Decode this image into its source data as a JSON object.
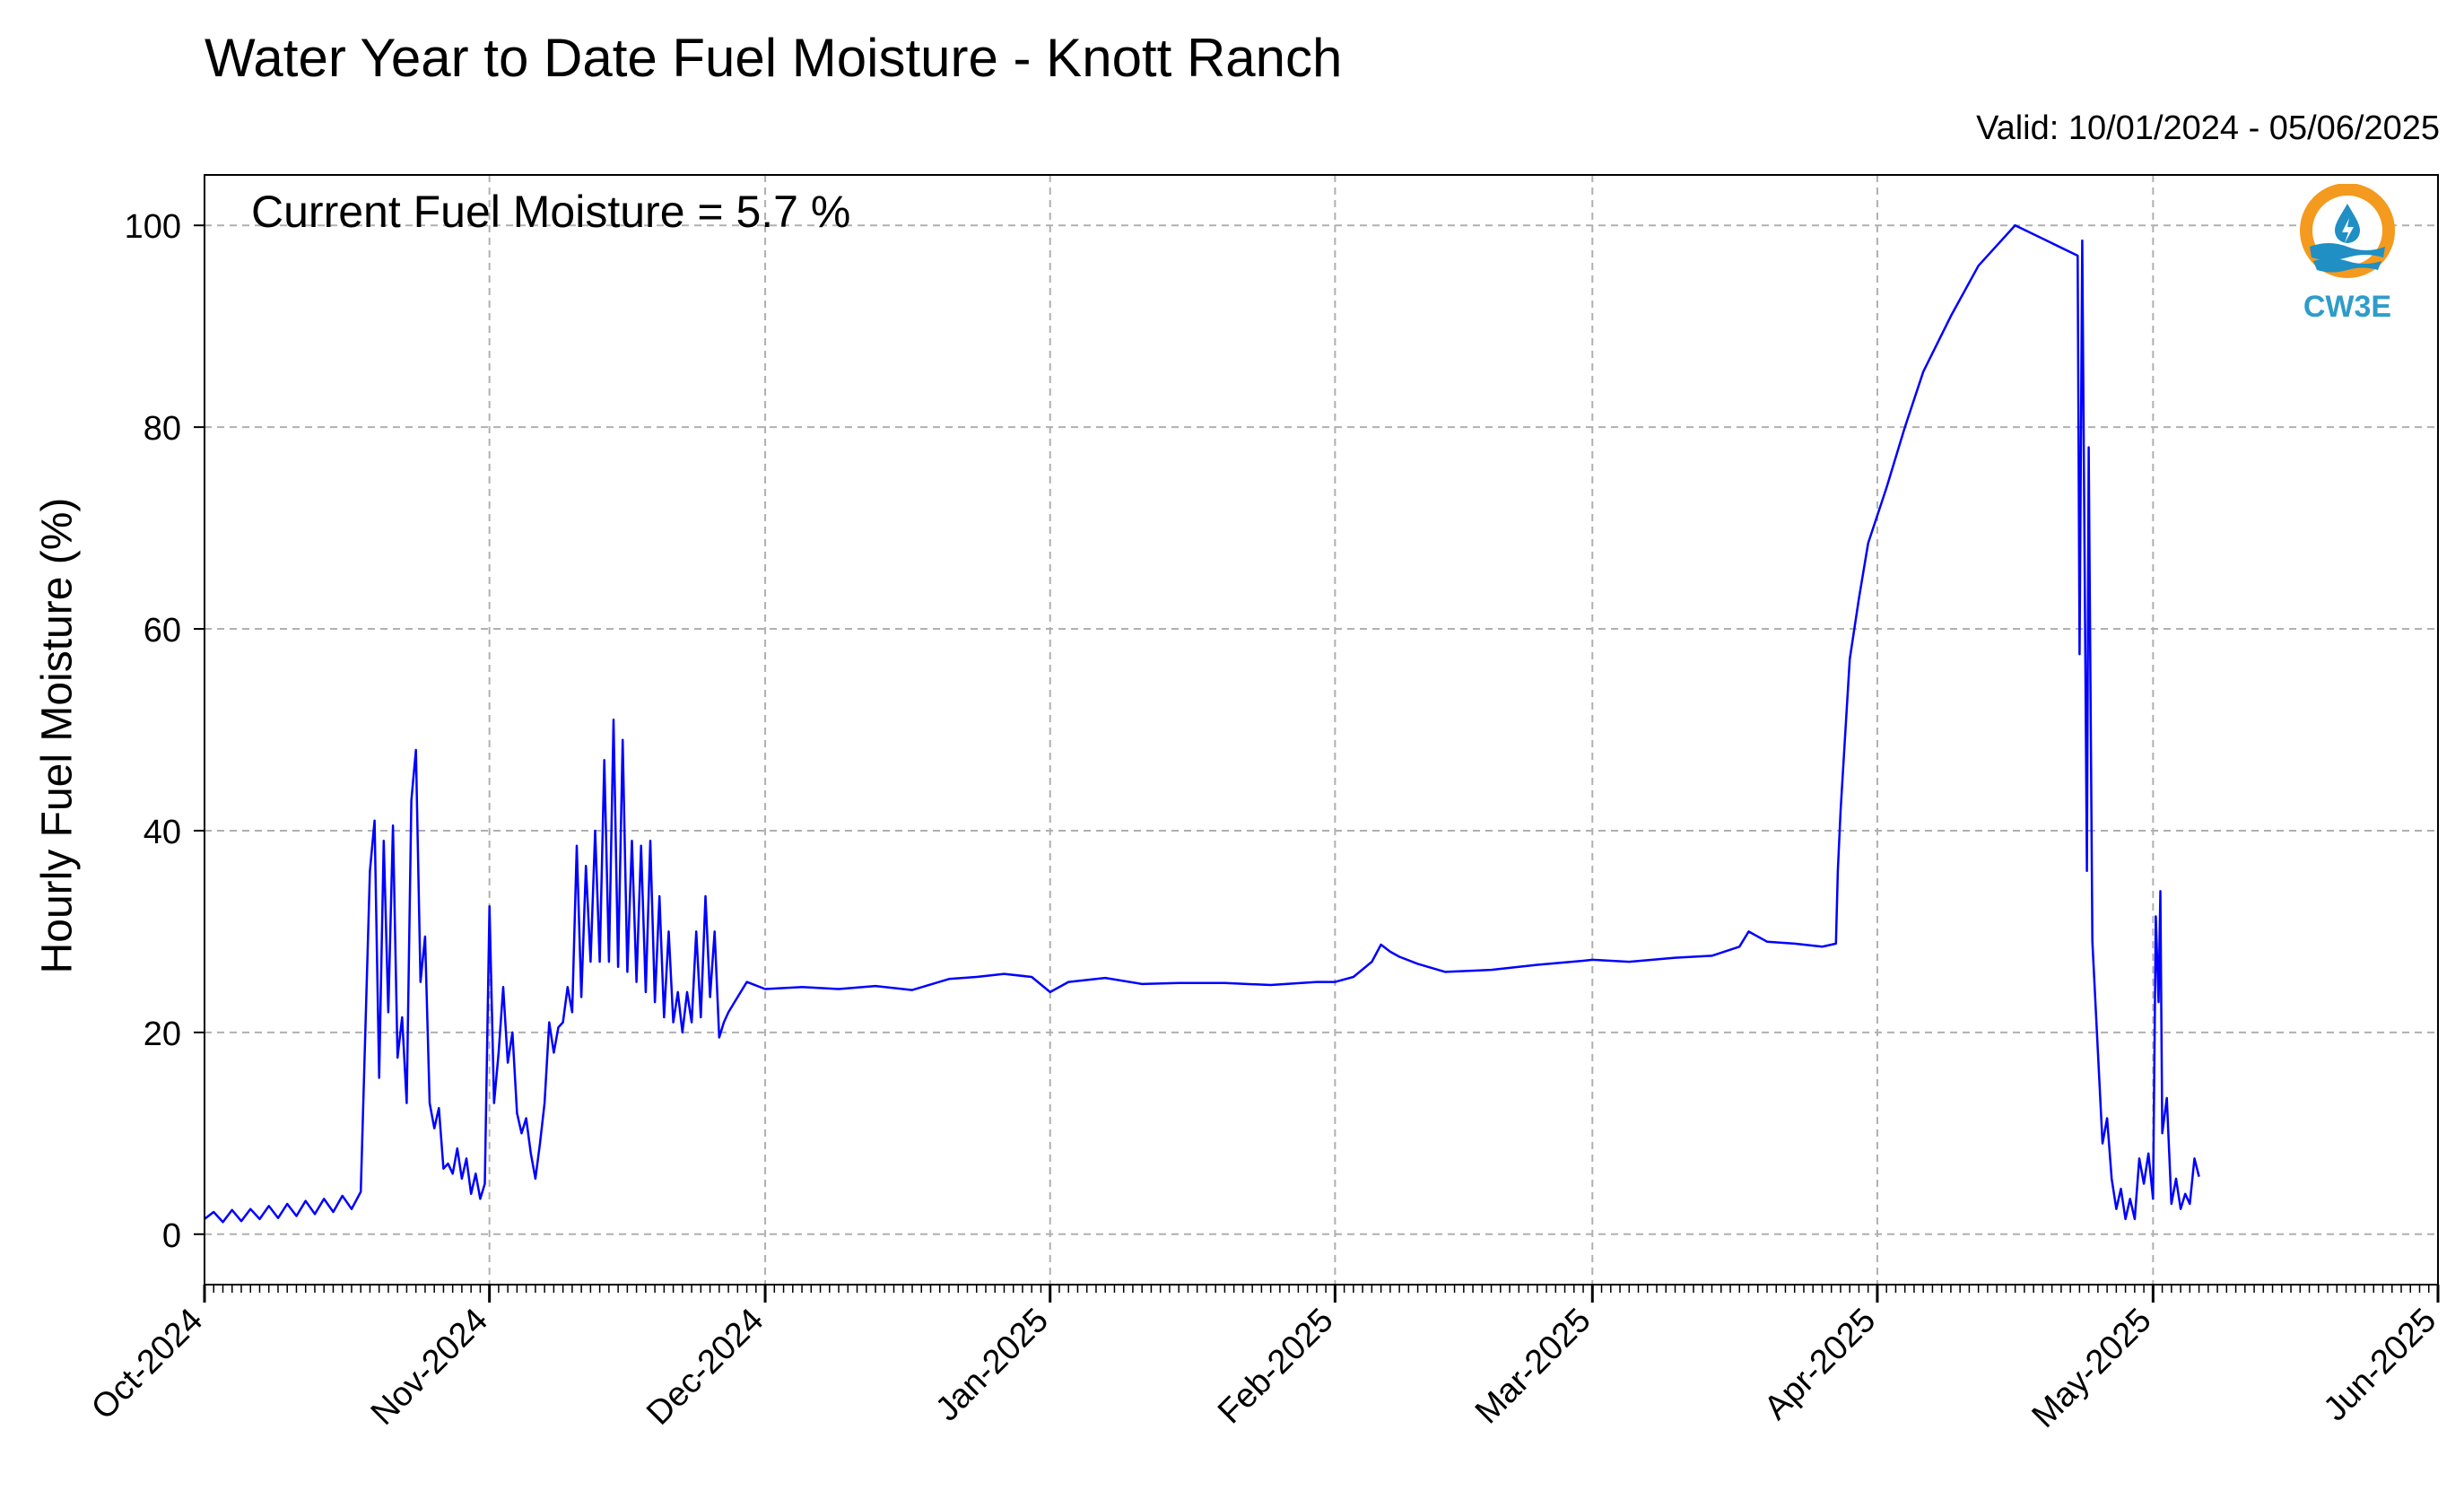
{
  "header": {
    "title": "Water Year to Date Fuel Moisture - Knott Ranch",
    "valid": "Valid: 10/01/2024 - 05/06/2025",
    "annotation": "Current Fuel Moisture = 5.7 %"
  },
  "logo": {
    "text": "CW3E",
    "ring_color": "#f39a1f",
    "wave_color": "#1f8fc4"
  },
  "chart_data": {
    "type": "line",
    "ylabel": "Hourly Fuel Moisture (%)",
    "xlim": [
      "2024-10-01",
      "2025-06-01"
    ],
    "ylim": [
      -5,
      105
    ],
    "grid": true,
    "line_color": "#0000ff",
    "xticks": [
      {
        "date": "2024-10-01",
        "label": "Oct-2024"
      },
      {
        "date": "2024-11-01",
        "label": "Nov-2024"
      },
      {
        "date": "2024-12-01",
        "label": "Dec-2024"
      },
      {
        "date": "2025-01-01",
        "label": "Jan-2025"
      },
      {
        "date": "2025-02-01",
        "label": "Feb-2025"
      },
      {
        "date": "2025-03-01",
        "label": "Mar-2025"
      },
      {
        "date": "2025-04-01",
        "label": "Apr-2025"
      },
      {
        "date": "2025-05-01",
        "label": "May-2025"
      },
      {
        "date": "2025-06-01",
        "label": "Jun-2025"
      }
    ],
    "yticks": [
      0,
      20,
      40,
      60,
      80,
      100
    ],
    "series": [
      {
        "points": [
          [
            "2024-10-01",
            1.5
          ],
          [
            "2024-10-02",
            2.2
          ],
          [
            "2024-10-03",
            1.2
          ],
          [
            "2024-10-04",
            2.4
          ],
          [
            "2024-10-05",
            1.3
          ],
          [
            "2024-10-06",
            2.5
          ],
          [
            "2024-10-07",
            1.5
          ],
          [
            "2024-10-08",
            2.8
          ],
          [
            "2024-10-09",
            1.6
          ],
          [
            "2024-10-10",
            3.0
          ],
          [
            "2024-10-11",
            1.8
          ],
          [
            "2024-10-12",
            3.3
          ],
          [
            "2024-10-13",
            2.0
          ],
          [
            "2024-10-14",
            3.5
          ],
          [
            "2024-10-15",
            2.2
          ],
          [
            "2024-10-16",
            3.8
          ],
          [
            "2024-10-17",
            2.5
          ],
          [
            "2024-10-18",
            4.2
          ],
          [
            "2024-10-19",
            36.0
          ],
          [
            "2024-10-19.5",
            41.0
          ],
          [
            "2024-10-20",
            15.5
          ],
          [
            "2024-10-20.5",
            39.0
          ],
          [
            "2024-10-21",
            22.0
          ],
          [
            "2024-10-21.5",
            40.5
          ],
          [
            "2024-10-22",
            17.5
          ],
          [
            "2024-10-22.5",
            21.5
          ],
          [
            "2024-10-23",
            13.0
          ],
          [
            "2024-10-23.5",
            43.0
          ],
          [
            "2024-10-24",
            48.0
          ],
          [
            "2024-10-24.5",
            25.0
          ],
          [
            "2024-10-25",
            29.5
          ],
          [
            "2024-10-25.5",
            13.0
          ],
          [
            "2024-10-26",
            10.5
          ],
          [
            "2024-10-26.5",
            12.5
          ],
          [
            "2024-10-27",
            6.5
          ],
          [
            "2024-10-27.5",
            7.0
          ],
          [
            "2024-10-28",
            6.0
          ],
          [
            "2024-10-28.5",
            8.5
          ],
          [
            "2024-10-29",
            5.5
          ],
          [
            "2024-10-29.5",
            7.5
          ],
          [
            "2024-10-30",
            4.0
          ],
          [
            "2024-10-30.5",
            6.0
          ],
          [
            "2024-10-31",
            3.5
          ],
          [
            "2024-10-31.5",
            5.0
          ],
          [
            "2024-11-01",
            32.5
          ],
          [
            "2024-11-01.5",
            13.0
          ],
          [
            "2024-11-02",
            18.0
          ],
          [
            "2024-11-02.5",
            24.5
          ],
          [
            "2024-11-03",
            17.0
          ],
          [
            "2024-11-03.5",
            20.0
          ],
          [
            "2024-11-04",
            12.0
          ],
          [
            "2024-11-04.5",
            10.0
          ],
          [
            "2024-11-05",
            11.5
          ],
          [
            "2024-11-05.5",
            8.0
          ],
          [
            "2024-11-06",
            5.5
          ],
          [
            "2024-11-06.5",
            9.0
          ],
          [
            "2024-11-07",
            13.0
          ],
          [
            "2024-11-07.5",
            21.0
          ],
          [
            "2024-11-08",
            18.0
          ],
          [
            "2024-11-08.5",
            20.5
          ],
          [
            "2024-11-09",
            21.0
          ],
          [
            "2024-11-09.5",
            24.5
          ],
          [
            "2024-11-10",
            22.0
          ],
          [
            "2024-11-10.5",
            38.5
          ],
          [
            "2024-11-11",
            23.5
          ],
          [
            "2024-11-11.5",
            36.5
          ],
          [
            "2024-11-12",
            27.0
          ],
          [
            "2024-11-12.5",
            40.0
          ],
          [
            "2024-11-13",
            27.0
          ],
          [
            "2024-11-13.5",
            47.0
          ],
          [
            "2024-11-14",
            27.0
          ],
          [
            "2024-11-14.5",
            51.0
          ],
          [
            "2024-11-15",
            26.5
          ],
          [
            "2024-11-15.5",
            49.0
          ],
          [
            "2024-11-16",
            26.0
          ],
          [
            "2024-11-16.5",
            39.0
          ],
          [
            "2024-11-17",
            25.0
          ],
          [
            "2024-11-17.5",
            38.5
          ],
          [
            "2024-11-18",
            24.0
          ],
          [
            "2024-11-18.5",
            39.0
          ],
          [
            "2024-11-19",
            23.0
          ],
          [
            "2024-11-19.5",
            33.5
          ],
          [
            "2024-11-20",
            21.5
          ],
          [
            "2024-11-20.5",
            30.0
          ],
          [
            "2024-11-21",
            21.0
          ],
          [
            "2024-11-21.5",
            24.0
          ],
          [
            "2024-11-22",
            20.0
          ],
          [
            "2024-11-22.5",
            24.0
          ],
          [
            "2024-11-23",
            21.0
          ],
          [
            "2024-11-23.5",
            30.0
          ],
          [
            "2024-11-24",
            21.5
          ],
          [
            "2024-11-24.5",
            33.5
          ],
          [
            "2024-11-25",
            23.5
          ],
          [
            "2024-11-25.5",
            30.0
          ],
          [
            "2024-11-26",
            19.5
          ],
          [
            "2024-11-26.5",
            21.0
          ],
          [
            "2024-11-27",
            22.0
          ],
          [
            "2024-11-28",
            23.5
          ],
          [
            "2024-11-29",
            25.0
          ],
          [
            "2024-12-01",
            24.3
          ],
          [
            "2024-12-05",
            24.5
          ],
          [
            "2024-12-09",
            24.3
          ],
          [
            "2024-12-13",
            24.6
          ],
          [
            "2024-12-17",
            24.2
          ],
          [
            "2024-12-21",
            25.3
          ],
          [
            "2024-12-24",
            25.5
          ],
          [
            "2024-12-27",
            25.8
          ],
          [
            "2024-12-30",
            25.5
          ],
          [
            "2025-01-01",
            24.0
          ],
          [
            "2025-01-03",
            25.0
          ],
          [
            "2025-01-07",
            25.4
          ],
          [
            "2025-01-11",
            24.8
          ],
          [
            "2025-01-15",
            24.9
          ],
          [
            "2025-01-20",
            24.9
          ],
          [
            "2025-01-25",
            24.7
          ],
          [
            "2025-01-30",
            25.0
          ],
          [
            "2025-02-01",
            25.0
          ],
          [
            "2025-02-03",
            25.5
          ],
          [
            "2025-02-05",
            27.0
          ],
          [
            "2025-02-06",
            28.7
          ],
          [
            "2025-02-07",
            28.0
          ],
          [
            "2025-02-08",
            27.5
          ],
          [
            "2025-02-10",
            26.8
          ],
          [
            "2025-02-13",
            26.0
          ],
          [
            "2025-02-18",
            26.2
          ],
          [
            "2025-02-23",
            26.7
          ],
          [
            "2025-02-28",
            27.1
          ],
          [
            "2025-03-01",
            27.2
          ],
          [
            "2025-03-05",
            27.0
          ],
          [
            "2025-03-10",
            27.4
          ],
          [
            "2025-03-14",
            27.6
          ],
          [
            "2025-03-17",
            28.5
          ],
          [
            "2025-03-18",
            30.0
          ],
          [
            "2025-03-20",
            29.0
          ],
          [
            "2025-03-23",
            28.8
          ],
          [
            "2025-03-26",
            28.5
          ],
          [
            "2025-03-27.5",
            28.8
          ],
          [
            "2025-03-27.7",
            36.0
          ],
          [
            "2025-03-28",
            42.0
          ],
          [
            "2025-03-29",
            57.0
          ],
          [
            "2025-03-30",
            63.0
          ],
          [
            "2025-03-31",
            68.5
          ],
          [
            "2025-04-02",
            74.0
          ],
          [
            "2025-04-04",
            80.0
          ],
          [
            "2025-04-06",
            85.5
          ],
          [
            "2025-04-09",
            91.0
          ],
          [
            "2025-04-12",
            96.0
          ],
          [
            "2025-04-16",
            100.0
          ],
          [
            "2025-04-22.8",
            97.0
          ],
          [
            "2025-04-23",
            57.5
          ],
          [
            "2025-04-23.3",
            98.5
          ],
          [
            "2025-04-23.8",
            36.0
          ],
          [
            "2025-04-24",
            78.0
          ],
          [
            "2025-04-24.4",
            29.0
          ],
          [
            "2025-04-25",
            18.0
          ],
          [
            "2025-04-25.5",
            9.0
          ],
          [
            "2025-04-26",
            11.5
          ],
          [
            "2025-04-26.5",
            5.5
          ],
          [
            "2025-04-27",
            2.5
          ],
          [
            "2025-04-27.5",
            4.5
          ],
          [
            "2025-04-28",
            1.5
          ],
          [
            "2025-04-28.5",
            3.5
          ],
          [
            "2025-04-29",
            1.5
          ],
          [
            "2025-04-29.5",
            7.5
          ],
          [
            "2025-04-30",
            5.0
          ],
          [
            "2025-04-30.5",
            8.0
          ],
          [
            "2025-05-01",
            3.5
          ],
          [
            "2025-05-01.3",
            31.5
          ],
          [
            "2025-05-01.6",
            23.0
          ],
          [
            "2025-05-01.8",
            34.0
          ],
          [
            "2025-05-02",
            10.0
          ],
          [
            "2025-05-02.5",
            13.5
          ],
          [
            "2025-05-03",
            3.0
          ],
          [
            "2025-05-03.5",
            5.5
          ],
          [
            "2025-05-04",
            2.5
          ],
          [
            "2025-05-04.5",
            4.0
          ],
          [
            "2025-05-05",
            3.0
          ],
          [
            "2025-05-05.5",
            7.5
          ],
          [
            "2025-05-06",
            5.7
          ]
        ]
      }
    ]
  }
}
